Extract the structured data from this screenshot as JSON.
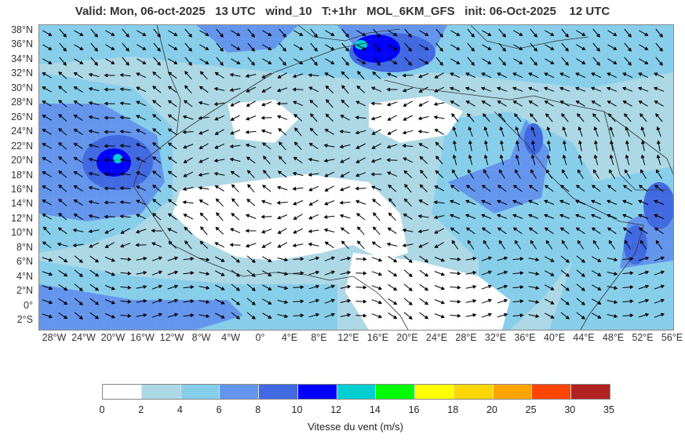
{
  "header": {
    "title": "Valid: Mon, 06-oct-2025   13 UTC   wind_10   T:+1hr   MOL_6KM_GFS   init: 06-Oct-2025    12 UTC"
  },
  "map": {
    "lat_labels": [
      "38°N",
      "36°N",
      "34°N",
      "32°N",
      "30°N",
      "28°N",
      "26°N",
      "24°N",
      "22°N",
      "20°N",
      "18°N",
      "16°N",
      "14°N",
      "12°N",
      "10°N",
      "8°N",
      "6°N",
      "4°N",
      "2°N",
      "0°",
      "2°S"
    ],
    "lon_labels": [
      "28°W",
      "24°W",
      "20°W",
      "16°W",
      "12°W",
      "8°W",
      "4°W",
      "0°",
      "4°E",
      "8°E",
      "12°E",
      "16°E",
      "20°E",
      "24°E",
      "28°E",
      "32°E",
      "36°E",
      "40°E",
      "44°E",
      "48°E",
      "52°E",
      "56°E"
    ],
    "colors": {
      "land_light": "#ffffff",
      "band_2_4": "#add8e6",
      "band_4_6": "#87ceeb",
      "band_6_8": "#6495ed",
      "band_8_10": "#4169e1",
      "band_10_12": "#0000ff",
      "band_12_14": "#00ced1",
      "arrow": "#000000",
      "border": "#333333"
    }
  },
  "colorbar": {
    "ticks": [
      "0",
      "2",
      "4",
      "6",
      "8",
      "10",
      "12",
      "14",
      "16",
      "18",
      "20",
      "25",
      "30",
      "35"
    ],
    "colors": [
      "#ffffff",
      "#add8e6",
      "#87ceeb",
      "#6495ed",
      "#4169e1",
      "#0000ff",
      "#00ced1",
      "#00ff00",
      "#ffff00",
      "#ffd700",
      "#ffa500",
      "#ff4500",
      "#b22222"
    ],
    "label": "Vitesse du vent (m/s)"
  }
}
